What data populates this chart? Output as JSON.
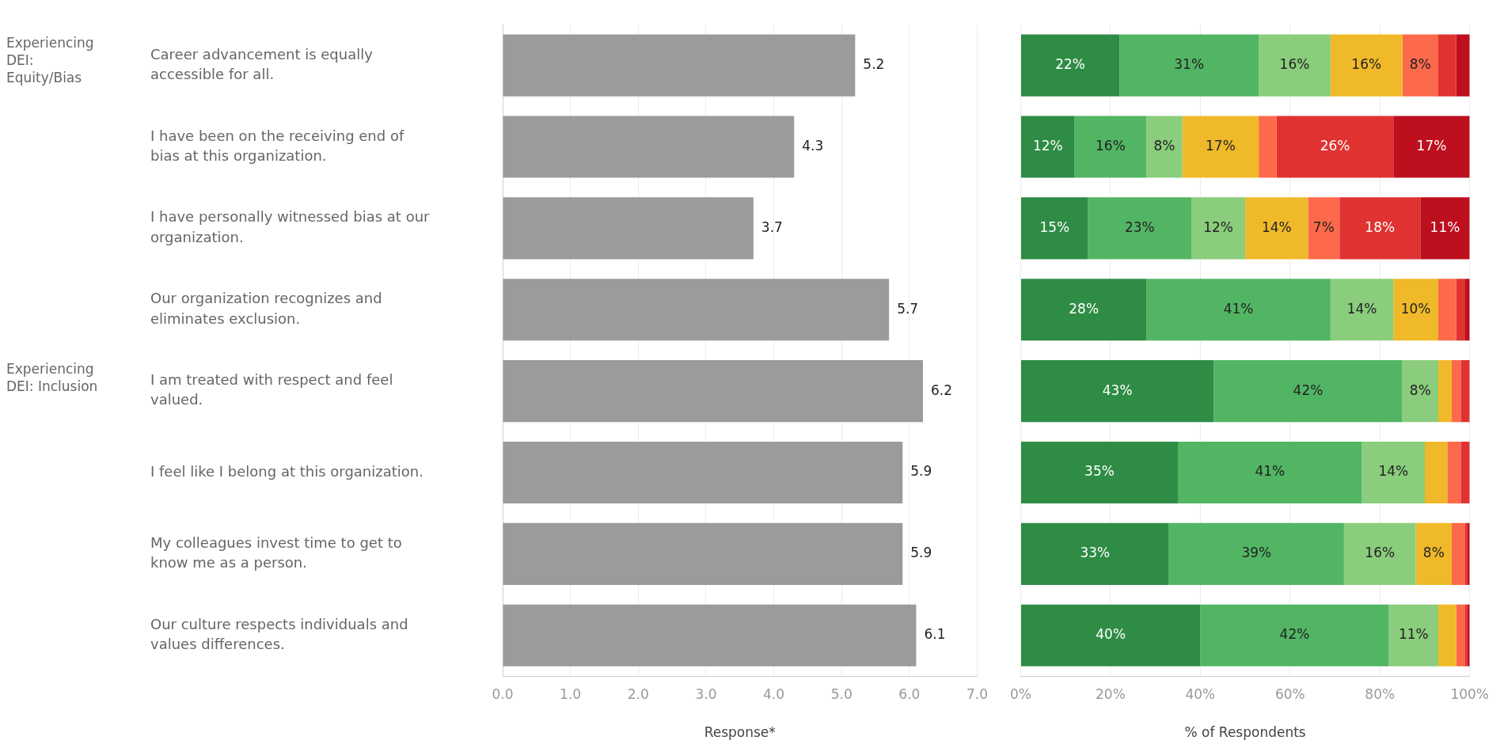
{
  "chart_data": [
    {
      "type": "bar",
      "orientation": "horizontal",
      "categories": [
        "Career advancement is equally accessible for all.",
        "I have been on the receiving end of bias at this organization.",
        "I have personally witnessed bias at our organization.",
        "Our organization recognizes and eliminates exclusion.",
        "I am treated with respect and feel valued.",
        "I feel like I belong at this organization.",
        "My colleagues invest time to get to know me as a person.",
        "Our culture respects individuals and values differences."
      ],
      "values": [
        5.2,
        4.3,
        3.7,
        5.7,
        6.2,
        5.9,
        5.9,
        6.1
      ],
      "color": "#9b9b9b",
      "data_labels": true,
      "xlim": [
        0,
        7
      ],
      "xticks": [
        {
          "value": 0,
          "label": "0.0"
        },
        {
          "value": 1,
          "label": "1.0"
        },
        {
          "value": 2,
          "label": "2.0"
        },
        {
          "value": 3,
          "label": "3.0"
        },
        {
          "value": 4,
          "label": "4.0"
        },
        {
          "value": 5,
          "label": "5.0"
        },
        {
          "value": 6,
          "label": "6.0"
        },
        {
          "value": 7,
          "label": "7.0"
        }
      ],
      "xlabel": "Response*",
      "grid": "x",
      "legend": false,
      "annotations": [
        "Experiencing DEI: Equity/Bias",
        "Experiencing DEI: Inclusion"
      ]
    },
    {
      "type": "bar",
      "orientation": "horizontal",
      "stacked": true,
      "categories": [
        null,
        null,
        null,
        null,
        null,
        null,
        null,
        null
      ],
      "series": [
        {
          "color": "#2e8c44",
          "values": [
            22,
            12,
            15,
            28,
            43,
            35,
            33,
            40
          ],
          "value_labels": [
            "22%",
            "12%",
            "15%",
            "28%",
            "43%",
            "35%",
            "33%",
            "40%"
          ]
        },
        {
          "color": "#52b564",
          "values": [
            31,
            16,
            23,
            41,
            42,
            41,
            39,
            42
          ],
          "value_labels": [
            "31%",
            "16%",
            "23%",
            "41%",
            "42%",
            "41%",
            "39%",
            "42%"
          ]
        },
        {
          "color": "#8acd7c",
          "values": [
            16,
            8,
            12,
            14,
            8,
            14,
            16,
            11
          ],
          "value_labels": [
            "16%",
            "8%",
            "12%",
            "14%",
            "8%",
            "14%",
            "16%",
            "11%"
          ]
        },
        {
          "color": "#f0b929",
          "values": [
            16,
            17,
            14,
            10,
            3,
            5,
            8,
            4
          ],
          "value_labels": [
            "16%",
            "17%",
            "14%",
            "10%",
            null,
            null,
            "8%",
            null
          ]
        },
        {
          "color": "#fd6a4b",
          "values": [
            8,
            4,
            7,
            4,
            2,
            3,
            3,
            2
          ],
          "value_labels": [
            "8%",
            null,
            "7%",
            null,
            null,
            null,
            null,
            null
          ]
        },
        {
          "color": "#e03331",
          "values": [
            4,
            26,
            18,
            2,
            2,
            2,
            0.5,
            0.5
          ],
          "value_labels": [
            null,
            "26%",
            "18%",
            null,
            null,
            null,
            null,
            null
          ]
        },
        {
          "color": "#bd0f1e",
          "values": [
            3,
            17,
            11,
            1,
            0,
            0,
            0.5,
            0.5
          ],
          "value_labels": [
            null,
            "17%",
            "11%",
            null,
            null,
            null,
            null,
            null
          ]
        }
      ],
      "xlim": [
        0,
        100
      ],
      "xticks": [
        {
          "value": 0,
          "label": "0%"
        },
        {
          "value": 20,
          "label": "20%"
        },
        {
          "value": 40,
          "label": "40%"
        },
        {
          "value": 60,
          "label": "60%"
        },
        {
          "value": 80,
          "label": "80%"
        },
        {
          "value": 100,
          "label": "100%"
        }
      ],
      "xlabel": "% of Respondents",
      "grid": "x",
      "legend": false,
      "tick_labels": "x"
    }
  ]
}
